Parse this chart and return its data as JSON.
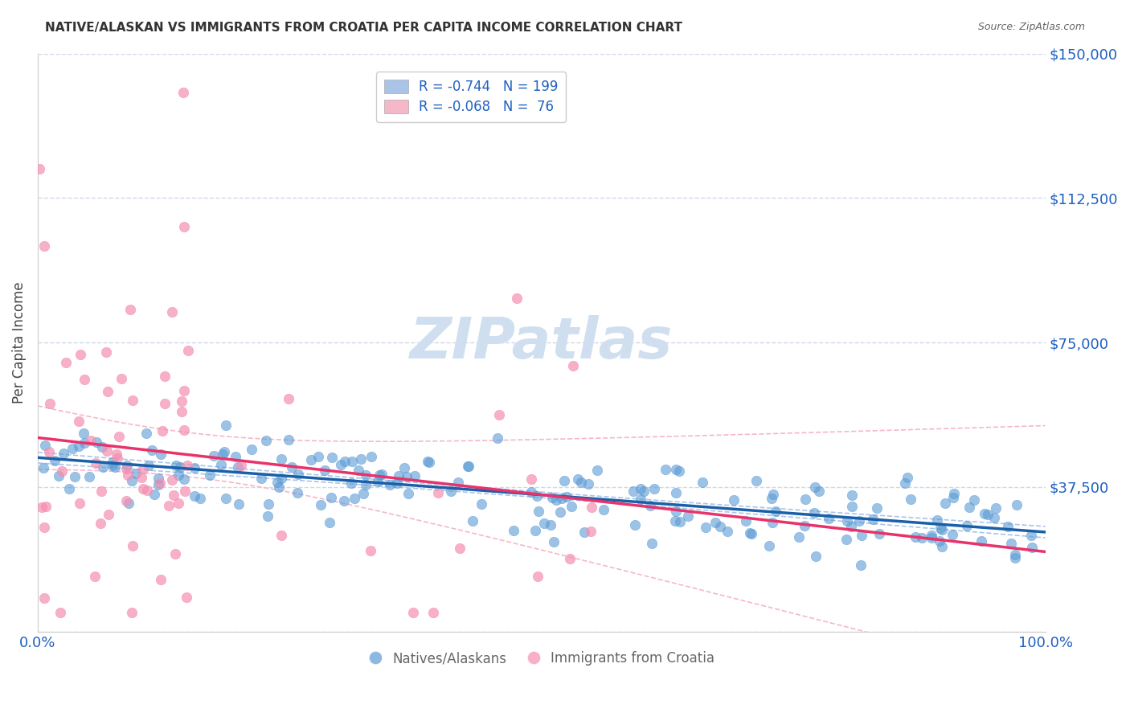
{
  "title": "NATIVE/ALASKAN VS IMMIGRANTS FROM CROATIA PER CAPITA INCOME CORRELATION CHART",
  "source": "Source: ZipAtlas.com",
  "xlabel": "",
  "ylabel": "Per Capita Income",
  "xlim": [
    0,
    1
  ],
  "ylim": [
    0,
    150000
  ],
  "yticks": [
    0,
    37500,
    75000,
    112500,
    150000
  ],
  "ytick_labels": [
    "",
    "$37,500",
    "$75,000",
    "$112,500",
    "$150,000"
  ],
  "xtick_labels": [
    "0.0%",
    "100.0%"
  ],
  "legend_items": [
    {
      "label": "R = -0.744   N = 199",
      "color": "#aac4e8"
    },
    {
      "label": "R = -0.068   N =  76",
      "color": "#f5b8c8"
    }
  ],
  "legend_label1": "R = -0.744",
  "legend_N1": "N = 199",
  "legend_label2": "R = -0.068",
  "legend_N2": "N =  76",
  "blue_color": "#5b9bd5",
  "pink_color": "#f48fb1",
  "blue_fill": "#aac4e8",
  "pink_fill": "#f5b8c8",
  "trend_blue_color": "#1a5fa8",
  "trend_pink_color": "#e8336a",
  "ci_line_color": "#aac4e8",
  "watermark": "ZIPatlas",
  "watermark_color": "#d0dff0",
  "bottom_legend": [
    "Natives/Alaskans",
    "Immigrants from Croatia"
  ],
  "R_blue": -0.744,
  "N_blue": 199,
  "R_pink": -0.068,
  "N_pink": 76,
  "title_fontsize": 11,
  "source_fontsize": 9,
  "axis_label_color": "#2060c0",
  "grid_color": "#d0d8e8",
  "background_color": "#ffffff"
}
